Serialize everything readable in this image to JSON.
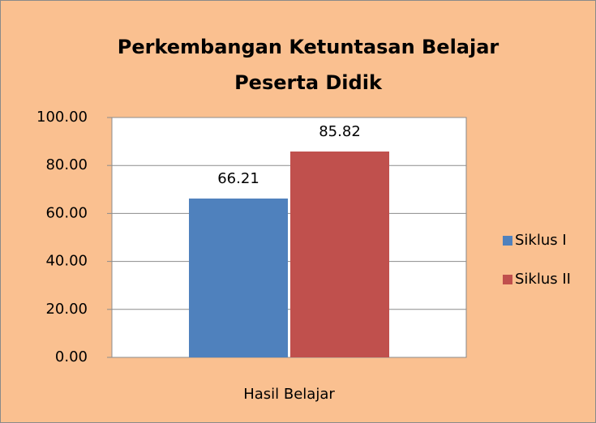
{
  "chart_data": {
    "type": "bar",
    "title": "Perkembangan Ketuntasan Belajar Peserta Didik",
    "categories": [
      "Hasil Belajar"
    ],
    "series": [
      {
        "name": "Siklus I",
        "color": "#4f81bd",
        "values": [
          66.21
        ]
      },
      {
        "name": "Siklus II",
        "color": "#c0504d",
        "values": [
          85.82
        ]
      }
    ],
    "ylim": [
      0,
      100
    ],
    "yticks": [
      {
        "value": 0,
        "label": "0.00"
      },
      {
        "value": 20,
        "label": "20.00"
      },
      {
        "value": 40,
        "label": "40.00"
      },
      {
        "value": 60,
        "label": "60.00"
      },
      {
        "value": 80,
        "label": "80.00"
      },
      {
        "value": 100,
        "label": "100.00"
      }
    ],
    "grid": true,
    "legend": "right"
  }
}
